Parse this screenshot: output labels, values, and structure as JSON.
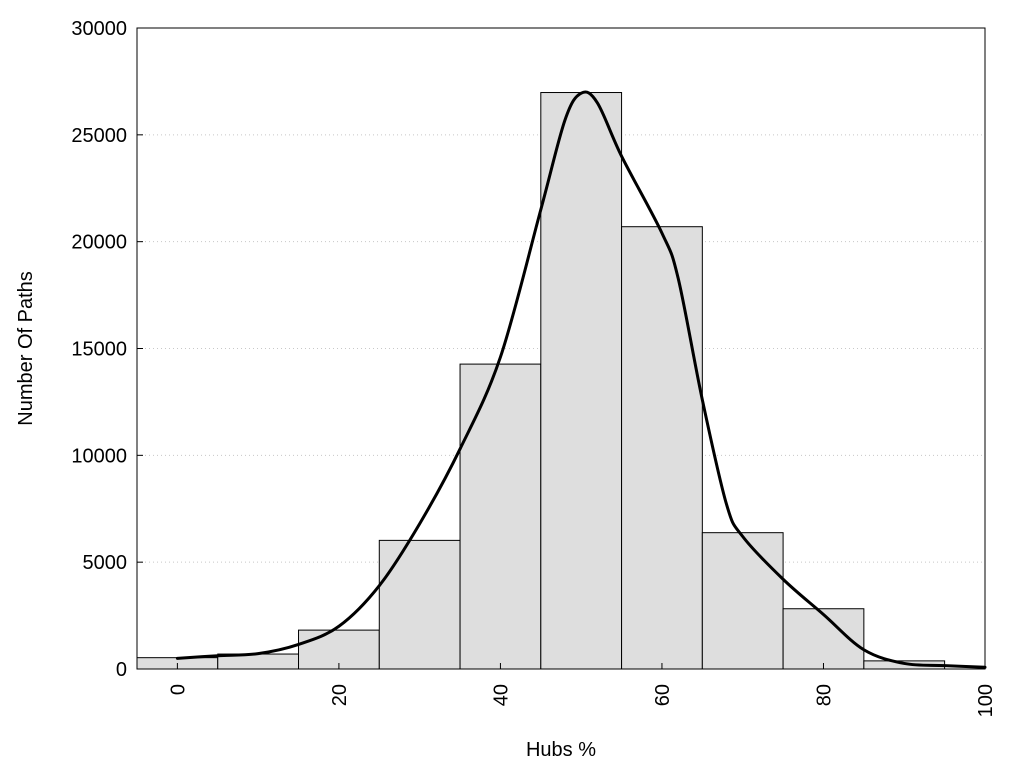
{
  "chart_data": {
    "type": "bar",
    "xlabel": "Hubs %",
    "ylabel": "Number Of Paths",
    "xlim": [
      -5,
      100
    ],
    "ylim": [
      0,
      30000
    ],
    "x_ticks": [
      "0",
      "20",
      "40",
      "60",
      "80",
      "100"
    ],
    "y_ticks": [
      "0",
      "5000",
      "10000",
      "15000",
      "20000",
      "25000",
      "30000"
    ],
    "grid": "horizontal dotted",
    "bin_width": 10,
    "bins": [
      {
        "center": 0,
        "value": 530
      },
      {
        "center": 10,
        "value": 700
      },
      {
        "center": 20,
        "value": 1820
      },
      {
        "center": 30,
        "value": 6020
      },
      {
        "center": 40,
        "value": 14270
      },
      {
        "center": 50,
        "value": 26980
      },
      {
        "center": 60,
        "value": 20700
      },
      {
        "center": 70,
        "value": 6380
      },
      {
        "center": 80,
        "value": 2820
      },
      {
        "center": 90,
        "value": 380
      }
    ],
    "curve": {
      "x": [
        0,
        5,
        10,
        15,
        20,
        25,
        30,
        35,
        40,
        45,
        48,
        50,
        52,
        55,
        60,
        62,
        65,
        68,
        70,
        75,
        80,
        85,
        90,
        95,
        100
      ],
      "y": [
        500,
        620,
        720,
        1150,
        2000,
        3900,
        6800,
        10300,
        14600,
        21500,
        25700,
        26950,
        26500,
        24000,
        20400,
        18300,
        12600,
        7700,
        6200,
        4200,
        2550,
        900,
        260,
        160,
        80
      ]
    },
    "colors": {
      "bar_fill": "#dedede",
      "bar_stroke": "#000000",
      "curve": "#000000",
      "grid": "#c8c8c8"
    }
  }
}
